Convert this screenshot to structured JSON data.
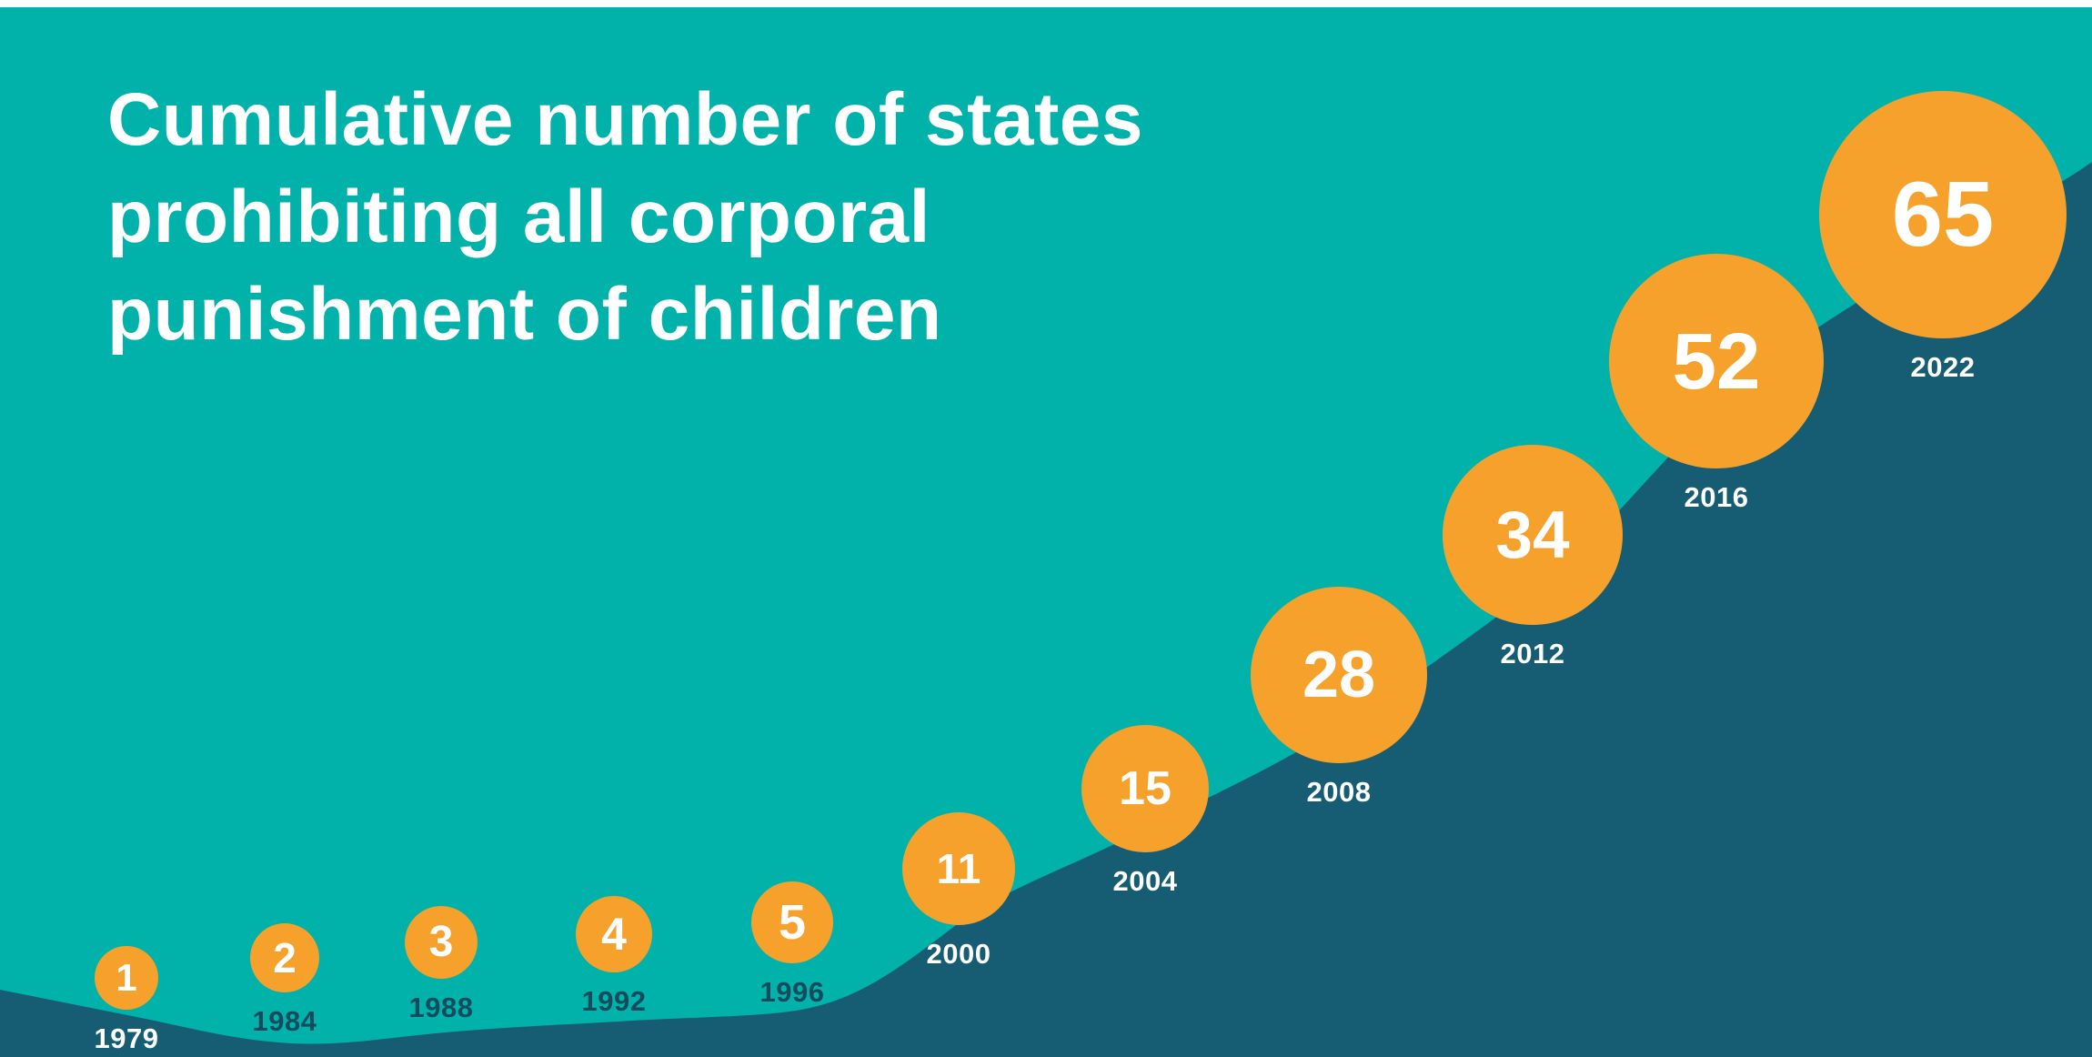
{
  "chart": {
    "title_lines": {
      "l1": "Cumulative number of states",
      "l2": "prohibiting all corporal",
      "l3": "punishment of children"
    }
  },
  "chart_data": {
    "type": "area",
    "title": "Cumulative number of states prohibiting all corporal punishment of children",
    "x": [
      1979,
      1984,
      1988,
      1992,
      1996,
      2000,
      2004,
      2008,
      2012,
      2016,
      2022
    ],
    "values": [
      1,
      2,
      3,
      4,
      5,
      11,
      15,
      28,
      34,
      52,
      65
    ],
    "xlabel": "",
    "ylabel": "",
    "grid": false,
    "legend": false,
    "annotation_style": "orange circles with white values sitting on rising dark wave, year labels beneath each circle",
    "colors": {
      "background": "#00B2AA",
      "area": "#165C72",
      "bubble": "#F6A12C",
      "bubble_text": "#FFFFFF",
      "title_text": "#FFFFFF",
      "year_label_dark": "#124A5E",
      "year_label_light": "#FFFFFF"
    }
  }
}
